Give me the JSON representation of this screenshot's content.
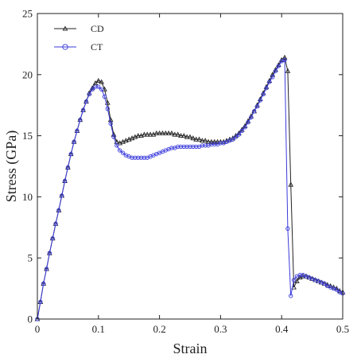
{
  "chart_data": {
    "type": "line",
    "title": "",
    "xlabel": "Strain",
    "ylabel": "Stress (GPa)",
    "xlim": [
      0,
      0.5
    ],
    "ylim": [
      0,
      25
    ],
    "xticks": [
      0,
      0.1,
      0.2,
      0.3,
      0.4,
      0.5
    ],
    "xtick_labels": [
      "0",
      "0.1",
      "0.2",
      "0.3",
      "0.4",
      "0.5"
    ],
    "yticks": [
      0,
      5,
      10,
      15,
      20,
      25
    ],
    "ytick_labels": [
      "0",
      "5",
      "10",
      "15",
      "20",
      "25"
    ],
    "grid": false,
    "legend_position": "top-left",
    "series": [
      {
        "name": "CD",
        "color": "#222222",
        "marker": "triangle",
        "points": [
          [
            0.0,
            0.0
          ],
          [
            0.005,
            1.4
          ],
          [
            0.01,
            2.9
          ],
          [
            0.015,
            4.1
          ],
          [
            0.02,
            5.4
          ],
          [
            0.025,
            6.6
          ],
          [
            0.03,
            7.8
          ],
          [
            0.035,
            8.9
          ],
          [
            0.04,
            10.1
          ],
          [
            0.045,
            11.3
          ],
          [
            0.05,
            12.4
          ],
          [
            0.055,
            13.5
          ],
          [
            0.06,
            14.5
          ],
          [
            0.065,
            15.4
          ],
          [
            0.07,
            16.3
          ],
          [
            0.075,
            17.1
          ],
          [
            0.08,
            17.8
          ],
          [
            0.085,
            18.5
          ],
          [
            0.09,
            18.9
          ],
          [
            0.095,
            19.3
          ],
          [
            0.1,
            19.5
          ],
          [
            0.105,
            19.4
          ],
          [
            0.11,
            18.8
          ],
          [
            0.115,
            17.7
          ],
          [
            0.12,
            16.3
          ],
          [
            0.125,
            15.1
          ],
          [
            0.13,
            14.5
          ],
          [
            0.135,
            14.4
          ],
          [
            0.14,
            14.5
          ],
          [
            0.145,
            14.6
          ],
          [
            0.15,
            14.7
          ],
          [
            0.155,
            14.8
          ],
          [
            0.16,
            14.9
          ],
          [
            0.165,
            15.0
          ],
          [
            0.17,
            15.0
          ],
          [
            0.175,
            15.1
          ],
          [
            0.18,
            15.1
          ],
          [
            0.185,
            15.1
          ],
          [
            0.19,
            15.1
          ],
          [
            0.195,
            15.2
          ],
          [
            0.2,
            15.2
          ],
          [
            0.205,
            15.2
          ],
          [
            0.21,
            15.2
          ],
          [
            0.215,
            15.2
          ],
          [
            0.22,
            15.2
          ],
          [
            0.225,
            15.1
          ],
          [
            0.23,
            15.1
          ],
          [
            0.235,
            15.0
          ],
          [
            0.24,
            15.0
          ],
          [
            0.245,
            14.9
          ],
          [
            0.25,
            14.9
          ],
          [
            0.255,
            14.8
          ],
          [
            0.26,
            14.7
          ],
          [
            0.265,
            14.7
          ],
          [
            0.27,
            14.6
          ],
          [
            0.275,
            14.6
          ],
          [
            0.28,
            14.5
          ],
          [
            0.285,
            14.5
          ],
          [
            0.29,
            14.5
          ],
          [
            0.295,
            14.5
          ],
          [
            0.3,
            14.5
          ],
          [
            0.305,
            14.5
          ],
          [
            0.31,
            14.6
          ],
          [
            0.315,
            14.7
          ],
          [
            0.32,
            14.8
          ],
          [
            0.325,
            15.0
          ],
          [
            0.33,
            15.2
          ],
          [
            0.335,
            15.5
          ],
          [
            0.34,
            15.8
          ],
          [
            0.345,
            16.2
          ],
          [
            0.35,
            16.6
          ],
          [
            0.355,
            17.0
          ],
          [
            0.36,
            17.5
          ],
          [
            0.365,
            18.0
          ],
          [
            0.37,
            18.5
          ],
          [
            0.375,
            19.0
          ],
          [
            0.38,
            19.5
          ],
          [
            0.385,
            20.0
          ],
          [
            0.39,
            20.4
          ],
          [
            0.395,
            20.8
          ],
          [
            0.4,
            21.2
          ],
          [
            0.405,
            21.4
          ],
          [
            0.41,
            20.3
          ],
          [
            0.415,
            11.0
          ],
          [
            0.42,
            2.6
          ],
          [
            0.425,
            3.1
          ],
          [
            0.43,
            3.4
          ],
          [
            0.435,
            3.5
          ],
          [
            0.44,
            3.5
          ],
          [
            0.445,
            3.4
          ],
          [
            0.45,
            3.3
          ],
          [
            0.455,
            3.2
          ],
          [
            0.46,
            3.1
          ],
          [
            0.465,
            3.0
          ],
          [
            0.47,
            2.9
          ],
          [
            0.475,
            2.8
          ],
          [
            0.48,
            2.7
          ],
          [
            0.485,
            2.6
          ],
          [
            0.49,
            2.5
          ],
          [
            0.495,
            2.3
          ],
          [
            0.5,
            2.2
          ]
        ]
      },
      {
        "name": "CT",
        "color": "#3a3adc",
        "marker": "circle",
        "points": [
          [
            0.0,
            0.0
          ],
          [
            0.005,
            1.4
          ],
          [
            0.01,
            2.9
          ],
          [
            0.015,
            4.1
          ],
          [
            0.02,
            5.4
          ],
          [
            0.025,
            6.6
          ],
          [
            0.03,
            7.8
          ],
          [
            0.035,
            8.9
          ],
          [
            0.04,
            10.1
          ],
          [
            0.045,
            11.3
          ],
          [
            0.05,
            12.4
          ],
          [
            0.055,
            13.5
          ],
          [
            0.06,
            14.5
          ],
          [
            0.065,
            15.4
          ],
          [
            0.07,
            16.3
          ],
          [
            0.075,
            17.1
          ],
          [
            0.08,
            17.8
          ],
          [
            0.085,
            18.4
          ],
          [
            0.09,
            18.8
          ],
          [
            0.095,
            19.0
          ],
          [
            0.1,
            19.0
          ],
          [
            0.105,
            18.8
          ],
          [
            0.11,
            18.2
          ],
          [
            0.115,
            17.2
          ],
          [
            0.12,
            16.0
          ],
          [
            0.125,
            14.9
          ],
          [
            0.13,
            14.2
          ],
          [
            0.135,
            13.8
          ],
          [
            0.14,
            13.6
          ],
          [
            0.145,
            13.4
          ],
          [
            0.15,
            13.3
          ],
          [
            0.155,
            13.2
          ],
          [
            0.16,
            13.2
          ],
          [
            0.165,
            13.2
          ],
          [
            0.17,
            13.2
          ],
          [
            0.175,
            13.2
          ],
          [
            0.18,
            13.2
          ],
          [
            0.185,
            13.3
          ],
          [
            0.19,
            13.4
          ],
          [
            0.195,
            13.5
          ],
          [
            0.2,
            13.6
          ],
          [
            0.205,
            13.7
          ],
          [
            0.21,
            13.8
          ],
          [
            0.215,
            13.9
          ],
          [
            0.22,
            14.0
          ],
          [
            0.225,
            14.0
          ],
          [
            0.23,
            14.1
          ],
          [
            0.235,
            14.1
          ],
          [
            0.24,
            14.1
          ],
          [
            0.245,
            14.1
          ],
          [
            0.25,
            14.1
          ],
          [
            0.255,
            14.1
          ],
          [
            0.26,
            14.1
          ],
          [
            0.265,
            14.1
          ],
          [
            0.27,
            14.2
          ],
          [
            0.275,
            14.2
          ],
          [
            0.28,
            14.2
          ],
          [
            0.285,
            14.3
          ],
          [
            0.29,
            14.3
          ],
          [
            0.295,
            14.3
          ],
          [
            0.3,
            14.4
          ],
          [
            0.305,
            14.4
          ],
          [
            0.31,
            14.5
          ],
          [
            0.315,
            14.6
          ],
          [
            0.32,
            14.7
          ],
          [
            0.325,
            14.9
          ],
          [
            0.33,
            15.1
          ],
          [
            0.335,
            15.4
          ],
          [
            0.34,
            15.7
          ],
          [
            0.345,
            16.1
          ],
          [
            0.35,
            16.5
          ],
          [
            0.355,
            17.0
          ],
          [
            0.36,
            17.4
          ],
          [
            0.365,
            17.9
          ],
          [
            0.37,
            18.4
          ],
          [
            0.375,
            18.9
          ],
          [
            0.38,
            19.4
          ],
          [
            0.385,
            19.8
          ],
          [
            0.39,
            20.3
          ],
          [
            0.395,
            20.7
          ],
          [
            0.4,
            21.1
          ],
          [
            0.405,
            21.2
          ],
          [
            0.41,
            7.4
          ],
          [
            0.415,
            1.9
          ],
          [
            0.42,
            3.2
          ],
          [
            0.425,
            3.5
          ],
          [
            0.43,
            3.6
          ],
          [
            0.435,
            3.6
          ],
          [
            0.44,
            3.5
          ],
          [
            0.445,
            3.4
          ],
          [
            0.45,
            3.3
          ],
          [
            0.455,
            3.2
          ],
          [
            0.46,
            3.1
          ],
          [
            0.465,
            3.0
          ],
          [
            0.47,
            2.9
          ],
          [
            0.475,
            2.7
          ],
          [
            0.48,
            2.6
          ],
          [
            0.485,
            2.5
          ],
          [
            0.49,
            2.4
          ],
          [
            0.495,
            2.2
          ],
          [
            0.5,
            2.1
          ]
        ]
      }
    ]
  }
}
